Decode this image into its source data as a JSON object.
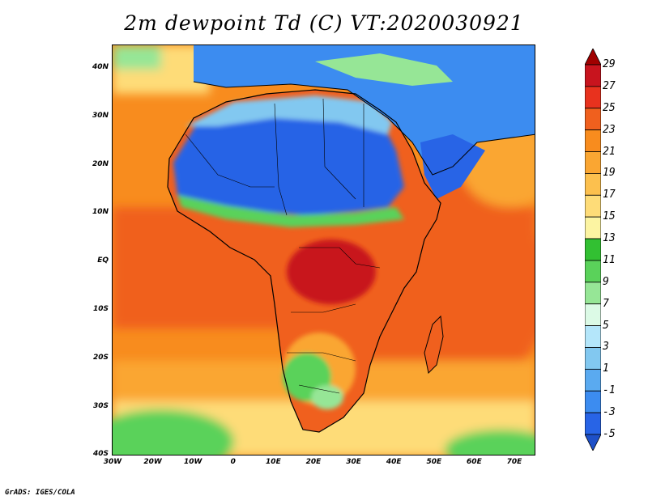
{
  "title": "2m dewpoint Td (C) VT:2020030921",
  "footer": "GrADS: IGES/COLA",
  "map": {
    "region": "Africa and surrounding oceans",
    "variable": "2m dewpoint temperature",
    "units": "C",
    "lon_range": [
      -30,
      75
    ],
    "lat_range": [
      -40,
      45
    ],
    "lat_ticks": [
      "40N",
      "30N",
      "20N",
      "10N",
      "EQ",
      "10S",
      "20S",
      "30S",
      "40S"
    ],
    "lon_ticks": [
      "30W",
      "20W",
      "10W",
      "0",
      "10E",
      "20E",
      "30E",
      "40E",
      "50E",
      "60E",
      "70E"
    ]
  },
  "colorbar": {
    "labels": [
      "29",
      "27",
      "25",
      "23",
      "21",
      "19",
      "17",
      "15",
      "13",
      "11",
      "9",
      "7",
      "5",
      "3",
      "1",
      "-1",
      "-3",
      "-5"
    ],
    "colors": [
      "#a00000",
      "#c8141e",
      "#e8321e",
      "#f0601e",
      "#f88c1e",
      "#faa632",
      "#fcc04e",
      "#fedc78",
      "#fcf4a2",
      "#32c032",
      "#5ad25a",
      "#96e696",
      "#dcfae6",
      "#b4e6fa",
      "#82c8f0",
      "#5aaaf0",
      "#3c8cf0",
      "#2864e6",
      "#1e50c8"
    ]
  }
}
